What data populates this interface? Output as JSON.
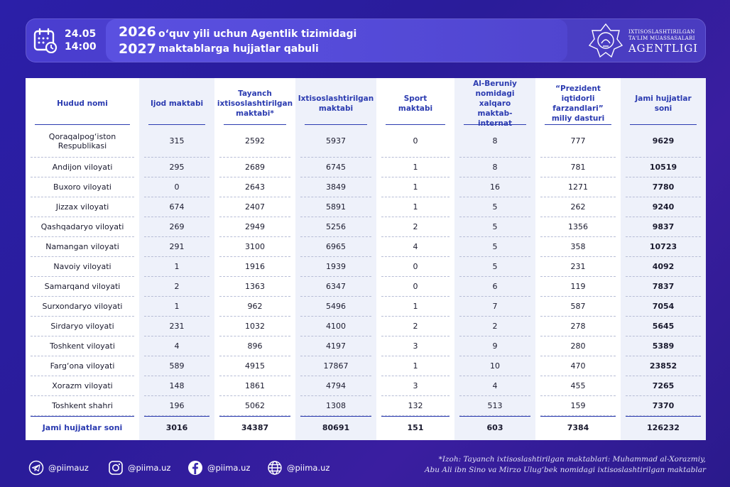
{
  "header": {
    "date": "24.05",
    "time": "14:00",
    "year_top": "2026",
    "year_bottom": "2027",
    "title_line1": "o‘quv yili uchun Agentlik tizimidagi",
    "title_line2": "maktablarga hujjatlar qabuli",
    "logo_line1": "IXTISOSLASHTIRILGAN",
    "logo_line2": "TA'LIM MUASSASALARI",
    "logo_line3": "AGENTLIGI",
    "icons": [
      "calendar-clock-icon",
      "agency-emblem-icon"
    ]
  },
  "columns": [
    "Hudud nomi",
    "Ijod maktabi",
    "Tayanch ixtisoslashtirilgan maktabi*",
    "Ixtisoslashtirilgan maktabi",
    "Sport maktabi",
    "Al-Beruniy nomidagi xalqaro maktab-internat",
    "“Prezident iqtidorli farzandlari” miliy dasturi",
    "Jami hujjatlar soni"
  ],
  "rows": [
    [
      "Qoraqalpog‘iston Respublikasi",
      "315",
      "2592",
      "5937",
      "0",
      "8",
      "777",
      "9629"
    ],
    [
      "Andijon viloyati",
      "295",
      "2689",
      "6745",
      "1",
      "8",
      "781",
      "10519"
    ],
    [
      "Buxoro viloyati",
      "0",
      "2643",
      "3849",
      "1",
      "16",
      "1271",
      "7780"
    ],
    [
      "Jizzax viloyati",
      "674",
      "2407",
      "5891",
      "1",
      "5",
      "262",
      "9240"
    ],
    [
      "Qashqadaryo viloyati",
      "269",
      "2949",
      "5256",
      "2",
      "5",
      "1356",
      "9837"
    ],
    [
      "Namangan viloyati",
      "291",
      "3100",
      "6965",
      "4",
      "5",
      "358",
      "10723"
    ],
    [
      "Navoiy viloyati",
      "1",
      "1916",
      "1939",
      "0",
      "5",
      "231",
      "4092"
    ],
    [
      "Samarqand viloyati",
      "2",
      "1363",
      "6347",
      "0",
      "6",
      "119",
      "7837"
    ],
    [
      "Surxondaryo viloyati",
      "1",
      "962",
      "5496",
      "1",
      "7",
      "587",
      "7054"
    ],
    [
      "Sirdaryo viloyati",
      "231",
      "1032",
      "4100",
      "2",
      "2",
      "278",
      "5645"
    ],
    [
      "Toshkent viloyati",
      "4",
      "896",
      "4197",
      "3",
      "9",
      "280",
      "5389"
    ],
    [
      "Farg‘ona viloyati",
      "589",
      "4915",
      "17867",
      "1",
      "10",
      "470",
      "23852"
    ],
    [
      "Xorazm viloyati",
      "148",
      "1861",
      "4794",
      "3",
      "4",
      "455",
      "7265"
    ],
    [
      "Toshkent shahri",
      "196",
      "5062",
      "1308",
      "132",
      "513",
      "159",
      "7370"
    ]
  ],
  "total": [
    "Jami hujjatlar soni",
    "3016",
    "34387",
    "80691",
    "151",
    "603",
    "7384",
    "126232"
  ],
  "footer": {
    "telegram": "@piimauz",
    "instagram": "@piima.uz",
    "facebook": "@piima.uz",
    "website": "@piima.uz",
    "note_line1": "*Izoh: Tayanch ixtisoslashtirilgan maktablari: Muhammad al-Xorazmiy,",
    "note_line2": "Abu Ali ibn Sino va Mirzo Ulug‘bek nomidagi ixtisoslashtirilgan maktablar"
  },
  "colors": {
    "background": "#2b1fa8",
    "accent": "#2b3bb0",
    "column_shade": "#eef1fa"
  }
}
